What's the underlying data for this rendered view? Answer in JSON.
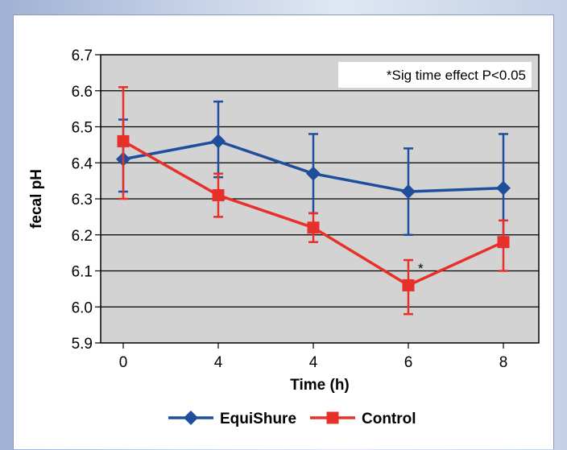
{
  "chart_data": {
    "type": "line",
    "title": "",
    "xlabel": "Time (h)",
    "ylabel": "fecal pH",
    "categories": [
      "0",
      "4",
      "4",
      "6",
      "8"
    ],
    "ylim": [
      5.9,
      6.7
    ],
    "yticks": [
      "5.9",
      "6.0",
      "6.1",
      "6.2",
      "6.3",
      "6.4",
      "6.5",
      "6.6",
      "6.7"
    ],
    "grid": true,
    "legend_position": "bottom",
    "annotation": "*Sig time effect P<0.05",
    "significance_marker": "*",
    "significance_category_index": 3,
    "series": [
      {
        "name": "EquiShure",
        "color": "#1f4e9c",
        "marker": "diamond",
        "values": [
          6.41,
          6.46,
          6.37,
          6.32,
          6.33
        ],
        "err_upper": [
          6.52,
          6.57,
          6.48,
          6.44,
          6.48
        ],
        "err_lower": [
          6.32,
          6.36,
          6.26,
          6.2,
          6.18
        ]
      },
      {
        "name": "Control",
        "color": "#e8302a",
        "marker": "square",
        "values": [
          6.46,
          6.31,
          6.22,
          6.06,
          6.18
        ],
        "err_upper": [
          6.61,
          6.37,
          6.26,
          6.13,
          6.24
        ],
        "err_lower": [
          6.3,
          6.25,
          6.18,
          5.98,
          6.1
        ]
      }
    ]
  }
}
